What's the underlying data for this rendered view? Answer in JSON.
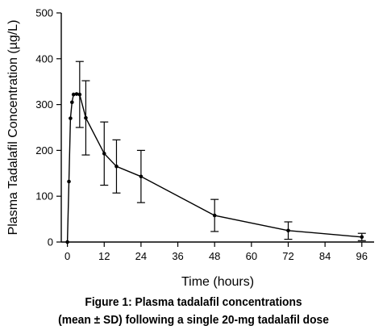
{
  "chart_data": {
    "type": "line",
    "title": "",
    "xlabel": "Time (hours)",
    "ylabel": "Plasma Tadalafil Concentration (µg/L)",
    "xlim": [
      -2,
      100
    ],
    "ylim": [
      0,
      500
    ],
    "xticks": [
      0,
      12,
      24,
      36,
      48,
      60,
      72,
      84,
      96
    ],
    "yticks": [
      0,
      100,
      200,
      300,
      400,
      500
    ],
    "grid": false,
    "legend": "none",
    "series": [
      {
        "x": [
          0,
          0.5,
          1,
          1.5,
          2,
          3,
          4,
          6,
          12,
          16,
          24,
          48,
          72,
          96
        ],
        "y": [
          0,
          132,
          270,
          305,
          322,
          323,
          322,
          271,
          193,
          165,
          143,
          58,
          25,
          11
        ],
        "sd": [
          0,
          0,
          0,
          0,
          0,
          0,
          72,
          81,
          69,
          58,
          57,
          35,
          19,
          8
        ]
      }
    ]
  },
  "caption": {
    "line1": "Figure 1: Plasma tadalafil concentrations",
    "line2": "(mean ± SD) following a single 20-mg tadalafil dose"
  }
}
